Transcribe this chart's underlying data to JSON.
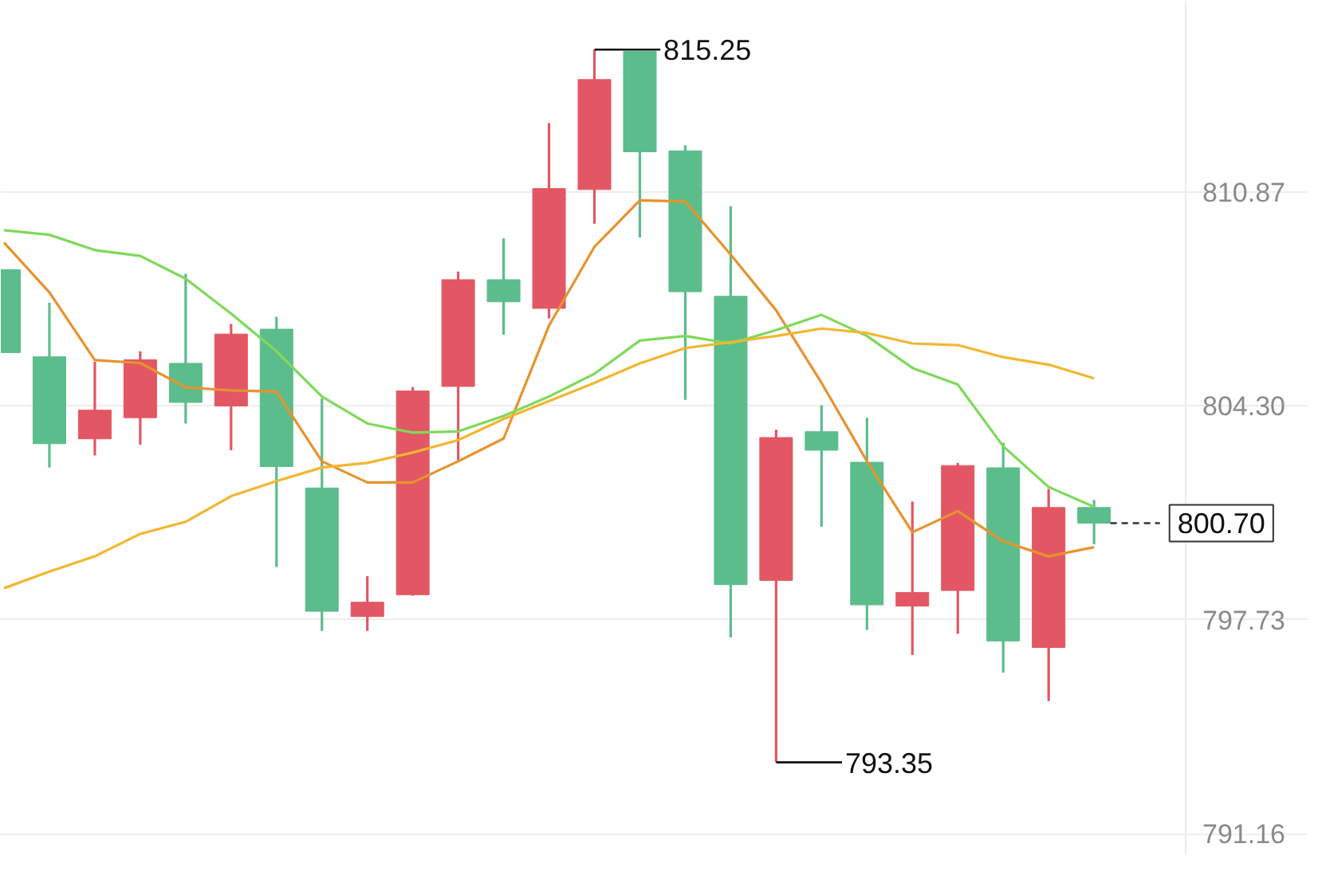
{
  "chart_data": {
    "type": "candlestick",
    "categories": [
      null,
      null,
      null,
      null,
      null,
      null,
      null,
      null,
      null,
      null,
      null,
      null,
      null,
      null,
      null,
      null,
      null,
      null,
      null,
      null,
      null,
      null,
      null,
      null,
      null
    ],
    "ohlc": [
      [
        808.49,
        808.49,
        805.94,
        805.94
      ],
      [
        805.81,
        807.47,
        802.41,
        803.14
      ],
      [
        803.29,
        805.66,
        802.78,
        804.17
      ],
      [
        803.94,
        805.98,
        803.11,
        805.72
      ],
      [
        805.61,
        808.36,
        803.76,
        804.41
      ],
      [
        804.3,
        806.82,
        802.94,
        806.51
      ],
      [
        806.66,
        807.04,
        799.35,
        802.44
      ],
      [
        801.78,
        804.53,
        797.39,
        797.99
      ],
      [
        797.83,
        799.07,
        797.39,
        798.27
      ],
      [
        798.5,
        804.88,
        798.47,
        804.76
      ],
      [
        804.9,
        808.43,
        802.63,
        808.18
      ],
      [
        808.18,
        809.45,
        806.49,
        807.5
      ],
      [
        807.3,
        812.99,
        806.99,
        810.98
      ],
      [
        810.95,
        815.25,
        809.9,
        814.33
      ],
      [
        815.2,
        815.2,
        809.48,
        812.11
      ],
      [
        812.14,
        812.31,
        804.49,
        807.81
      ],
      [
        807.67,
        810.44,
        797.19,
        798.81
      ],
      [
        798.94,
        803.57,
        793.35,
        803.33
      ],
      [
        803.51,
        804.32,
        800.59,
        802.94
      ],
      [
        802.57,
        803.94,
        797.42,
        798.19
      ],
      [
        798.15,
        801.36,
        796.65,
        798.57
      ],
      [
        798.63,
        802.55,
        797.3,
        802.47
      ],
      [
        802.4,
        803.17,
        796.11,
        797.08
      ],
      [
        796.88,
        801.75,
        795.23,
        801.18
      ],
      [
        801.18,
        801.41,
        800.05,
        800.7
      ]
    ],
    "colors": [
      "#5bbd8b",
      "#5bbd8b",
      "#e25763",
      "#e25763",
      "#5bbd8b",
      "#e25763",
      "#5bbd8b",
      "#5bbd8b",
      "#e25763",
      "#e25763",
      "#e25763",
      "#5bbd8b",
      "#e25763",
      "#e25763",
      "#5bbd8b",
      "#5bbd8b",
      "#5bbd8b",
      "#e25763",
      "#5bbd8b",
      "#5bbd8b",
      "#e25763",
      "#e25763",
      "#5bbd8b",
      "#e25763",
      "#5bbd8b"
    ],
    "series": [
      {
        "type": "line",
        "color": "#e8922e",
        "values": [
          809.32,
          807.79,
          805.71,
          805.62,
          804.87,
          804.78,
          804.74,
          802.6,
          801.95,
          801.95,
          802.6,
          803.3,
          806.77,
          809.19,
          810.62,
          810.58,
          808.95,
          807.24,
          805.01,
          802.6,
          800.42,
          801.07,
          800.14,
          799.68,
          799.96
        ]
      },
      {
        "type": "line",
        "color": "#7fd95a",
        "values": [
          809.7,
          809.56,
          809.09,
          808.91,
          808.21,
          807.14,
          805.98,
          804.59,
          803.76,
          803.48,
          803.52,
          803.99,
          804.59,
          805.29,
          806.31,
          806.45,
          806.22,
          806.63,
          807.1,
          806.45,
          805.47,
          804.96,
          803.06,
          801.81,
          801.2
        ]
      },
      {
        "type": "line",
        "color": "#f2b630",
        "values": [
          798.7,
          799.21,
          799.68,
          800.37,
          800.74,
          801.53,
          801.99,
          802.41,
          802.55,
          802.87,
          803.25,
          803.9,
          804.45,
          805.01,
          805.61,
          806.08,
          806.26,
          806.45,
          806.68,
          806.54,
          806.22,
          806.17,
          805.8,
          805.57,
          805.15
        ]
      }
    ],
    "ylim": [
      790.5,
      816.75
    ],
    "yticks": [
      791.16,
      797.73,
      {
        "value": 804.3,
        "label": "804.30"
      },
      810.87
    ],
    "grid": "y",
    "tick_labels": "y",
    "annotations": [
      "815.25",
      "793.35"
    ],
    "ref_lines": [
      {
        "axis": "y",
        "value": 800.7,
        "label": "800.70",
        "color": "#333333",
        "line_style": "dashed"
      }
    ]
  }
}
